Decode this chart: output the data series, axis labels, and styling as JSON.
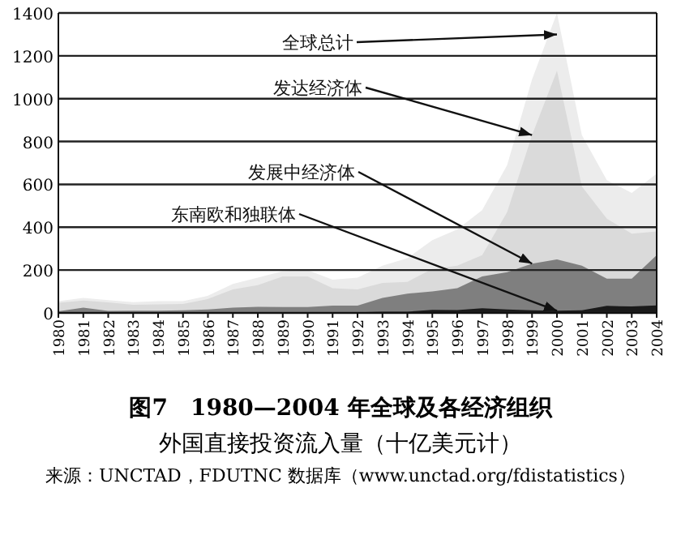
{
  "chart_data": {
    "type": "area",
    "title": "图7　1980—2004 年全球及各经济组织",
    "subtitle": "外国直接投资流入量（十亿美元计）",
    "annotations": [
      {
        "text": "全球总计",
        "x": "2000",
        "y": 1300
      },
      {
        "text": "发达经济体",
        "x": "1999",
        "y": 830
      },
      {
        "text": "发展中经济体",
        "x": "1999",
        "y": 230
      },
      {
        "text": "东南欧和独联体",
        "x": "2000",
        "y": 10
      },
      "来源：UNCTAD，FDUTNC 数据库（www.unctad.org/fdistatistics）"
    ],
    "categories": [
      "1980",
      "1981",
      "1982",
      "1983",
      "1984",
      "1985",
      "1986",
      "1987",
      "1988",
      "1989",
      "1990",
      "1991",
      "1992",
      "1993",
      "1994",
      "1995",
      "1996",
      "1997",
      "1998",
      "1999",
      "2000",
      "2001",
      "2002",
      "2003",
      "2004"
    ],
    "series": [
      {
        "color": "#ececec",
        "values": [
          55,
          70,
          60,
          50,
          55,
          55,
          80,
          135,
          165,
          195,
          200,
          155,
          165,
          220,
          255,
          340,
          390,
          480,
          690,
          1090,
          1400,
          830,
          620,
          560,
          650
        ]
      },
      {
        "color": "#dadada",
        "values": [
          47,
          58,
          49,
          38,
          40,
          42,
          65,
          110,
          130,
          170,
          170,
          115,
          110,
          140,
          145,
          205,
          220,
          270,
          470,
          830,
          1130,
          590,
          440,
          370,
          380
        ]
      },
      {
        "color": "#7f7f7f",
        "values": [
          8,
          25,
          9,
          10,
          10,
          12,
          16,
          25,
          28,
          27,
          27,
          34,
          34,
          70,
          90,
          100,
          115,
          170,
          190,
          230,
          250,
          220,
          160,
          160,
          270
        ]
      },
      {
        "color": "#1a1a1a",
        "values": [
          0,
          0,
          0,
          0,
          0,
          0,
          0,
          0,
          0,
          0,
          0,
          0,
          3,
          6,
          6,
          14,
          13,
          22,
          16,
          12,
          10,
          12,
          33,
          30,
          35
        ]
      }
    ],
    "ylim": [
      0,
      1400
    ],
    "yticks": [
      0,
      200,
      400,
      600,
      800,
      1000,
      1200,
      1400
    ],
    "grid": "y"
  }
}
